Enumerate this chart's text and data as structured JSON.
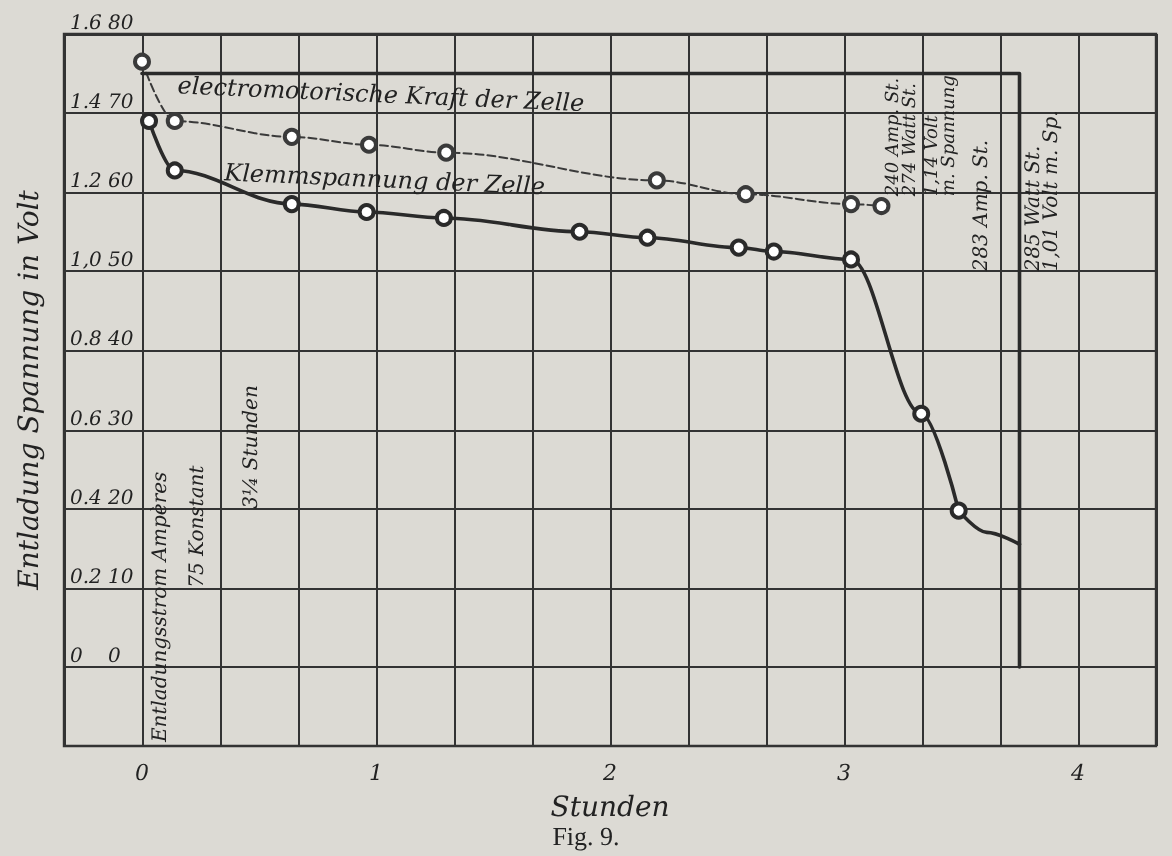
{
  "chart_data": {
    "type": "line",
    "xlabel": "Stunden",
    "ylabel": "Entladung Spannung in Volt",
    "xlim": [
      -0.3333,
      4.3333
    ],
    "xticks": [
      {
        "value": -0.3333,
        "label": null
      },
      0,
      {
        "value": 0.3333,
        "label": null
      },
      {
        "value": 0.6667,
        "label": null
      },
      1,
      {
        "value": 1.3333,
        "label": null
      },
      {
        "value": 1.6667,
        "label": null
      },
      2,
      {
        "value": 2.3333,
        "label": null
      },
      {
        "value": 2.6667,
        "label": null
      },
      3,
      {
        "value": 3.3333,
        "label": null
      },
      {
        "value": 3.6667,
        "label": null
      },
      4,
      {
        "value": 4.3333,
        "label": null
      }
    ],
    "ylim": [
      -0.2,
      1.6
    ],
    "yticks": [
      {
        "value": 0,
        "label": "0"
      },
      0.2,
      0.4,
      0.6,
      0.8,
      {
        "value": 1.0,
        "label": "1,0"
      },
      1.2,
      1.4,
      1.6
    ],
    "y2lim": [
      -10,
      80
    ],
    "y2ticks": [
      0,
      10,
      20,
      30,
      40,
      50,
      60,
      70,
      80
    ],
    "grid": true,
    "legend": false,
    "series": [
      {
        "name": "electromotorische Kraft der Zelle",
        "color": "#3a3a3a",
        "marker": "circle",
        "line_style": "dashed",
        "x": [
          0,
          0.14,
          0.64,
          0.97,
          1.3,
          2.2,
          2.58,
          3.03,
          3.16
        ],
        "values": [
          1.53,
          1.38,
          1.34,
          1.32,
          1.3,
          1.23,
          1.195,
          1.17,
          1.165
        ]
      },
      {
        "name": "Klemmspannung der Zelle",
        "color": "#2a2a2a",
        "marker": "circle",
        "line_style": "solid",
        "x": [
          0.03,
          0.14,
          0.64,
          0.96,
          1.29,
          1.87,
          2.16,
          2.55,
          2.7,
          3.03,
          3.33,
          3.49
        ],
        "values": [
          1.38,
          1.255,
          1.17,
          1.15,
          1.135,
          1.1,
          1.085,
          1.06,
          1.05,
          1.03,
          0.64,
          0.395
        ]
      },
      {
        "color": "#2a2a2a",
        "marker": "none",
        "line_style": "solid",
        "x": [
          3.49,
          3.61,
          3.75
        ],
        "values": [
          0.395,
          0.34,
          0.31
        ]
      },
      {
        "color": "#2a2a2a",
        "marker": "none",
        "line_style": "solid",
        "axis": "y2",
        "x": [
          0,
          3.75,
          3.75
        ],
        "values": [
          75,
          75,
          0
        ]
      }
    ],
    "annotations": [
      "Entladungsstrom Ampères",
      "75 Konstant",
      "3¼ Stunden",
      "240 Amp. St.",
      "274 Watt St.",
      "1,14 Volt",
      "m. Spannung",
      "283 Amp. St.",
      "285 Watt St.",
      "1,01 Volt m. Sp.",
      "Fig. 9."
    ]
  }
}
